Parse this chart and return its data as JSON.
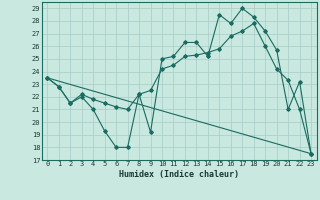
{
  "title": "",
  "xlabel": "Humidex (Indice chaleur)",
  "bg_color": "#c8e8e0",
  "grid_color": "#a8ccc8",
  "line_color": "#1a6b60",
  "xlim": [
    -0.5,
    23.5
  ],
  "ylim": [
    17,
    29.5
  ],
  "yticks": [
    17,
    18,
    19,
    20,
    21,
    22,
    23,
    24,
    25,
    26,
    27,
    28,
    29
  ],
  "xticks": [
    0,
    1,
    2,
    3,
    4,
    5,
    6,
    7,
    8,
    9,
    10,
    11,
    12,
    13,
    14,
    15,
    16,
    17,
    18,
    19,
    20,
    21,
    22,
    23
  ],
  "line1_x": [
    0,
    1,
    2,
    3,
    4,
    5,
    6,
    7,
    8,
    9,
    10,
    11,
    12,
    13,
    14,
    15,
    16,
    17,
    18,
    19,
    20,
    21,
    22,
    23
  ],
  "line1_y": [
    23.5,
    22.8,
    21.5,
    22.0,
    21.0,
    19.3,
    18.0,
    18.0,
    22.2,
    19.2,
    25.0,
    25.2,
    26.3,
    26.3,
    25.2,
    28.5,
    27.8,
    29.0,
    28.3,
    27.2,
    25.7,
    21.0,
    23.2,
    17.5
  ],
  "line2_x": [
    0,
    1,
    2,
    3,
    4,
    5,
    6,
    7,
    8,
    9,
    10,
    11,
    12,
    13,
    14,
    15,
    16,
    17,
    18,
    19,
    20,
    21,
    22,
    23
  ],
  "line2_y": [
    23.5,
    22.8,
    21.5,
    22.2,
    21.8,
    21.5,
    21.2,
    21.0,
    22.2,
    22.5,
    24.2,
    24.5,
    25.2,
    25.3,
    25.5,
    25.8,
    26.8,
    27.2,
    27.8,
    26.0,
    24.2,
    23.3,
    21.0,
    17.5
  ],
  "line3_x": [
    0,
    23
  ],
  "line3_y": [
    23.5,
    17.5
  ],
  "xlabel_fontsize": 6,
  "tick_fontsize": 5,
  "linewidth": 0.8,
  "markersize": 1.8
}
